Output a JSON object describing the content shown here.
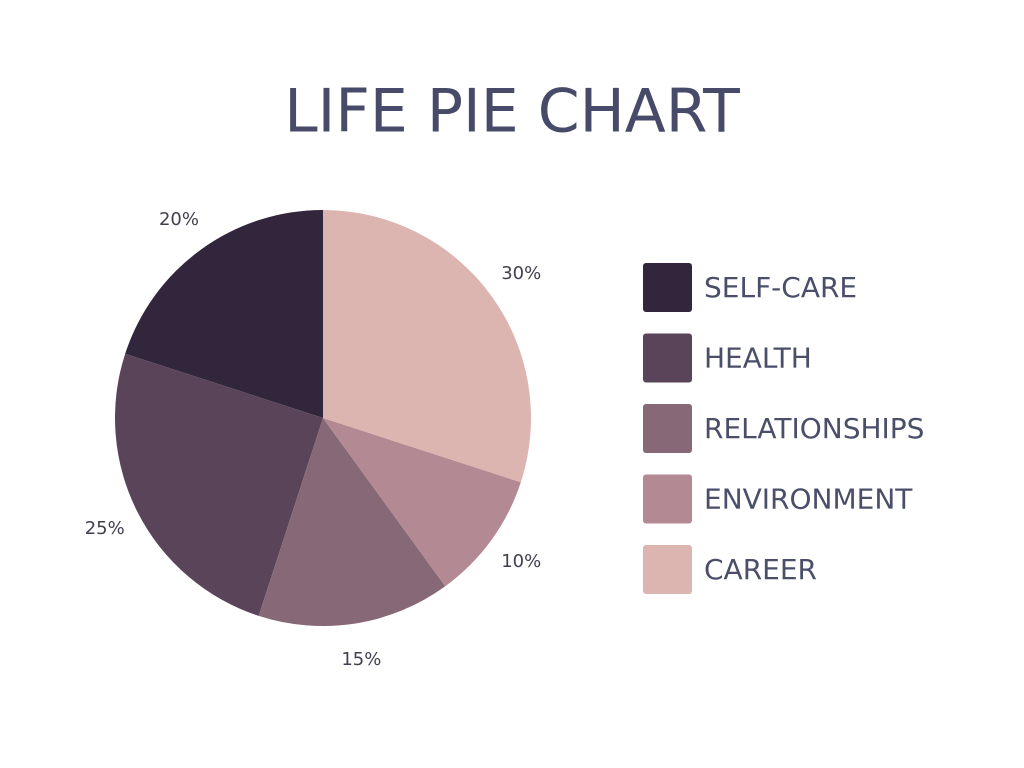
{
  "chart_data": {
    "type": "pie",
    "title": "LIFE PIE CHART",
    "categories": [
      "SELF-CARE",
      "HEALTH",
      "RELATIONSHIPS",
      "ENVIRONMENT",
      "CAREER"
    ],
    "values": [
      20,
      25,
      15,
      10,
      30
    ],
    "value_labels": [
      "20%",
      "25%",
      "15%",
      "10%",
      "30%"
    ],
    "colors": [
      "#31263b",
      "#5a4459",
      "#876876",
      "#b38a93",
      "#dcb5b0"
    ],
    "legend": "right"
  }
}
